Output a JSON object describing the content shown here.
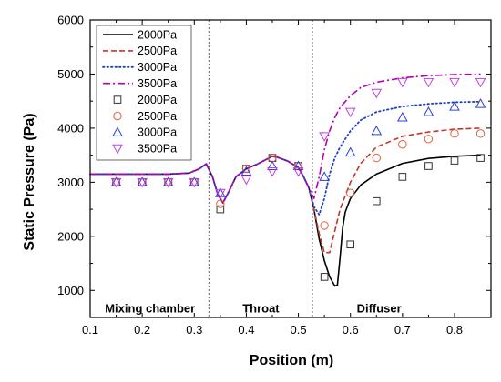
{
  "chart_data": {
    "type": "line",
    "xlabel": "Position (m)",
    "ylabel": "Static Pressure (Pa)",
    "xlim": [
      0.1,
      0.87
    ],
    "ylim": [
      500,
      6000
    ],
    "xticks": [
      0.1,
      0.2,
      0.3,
      0.4,
      0.5,
      0.6,
      0.7,
      0.8
    ],
    "xtick_labels": [
      "0.1",
      "0.2",
      "0.3",
      "0.4",
      "0.5",
      "0.6",
      "0.7",
      "0.8"
    ],
    "yticks": [
      1000,
      2000,
      3000,
      4000,
      5000,
      6000
    ],
    "ytick_labels": [
      "1000",
      "2000",
      "3000",
      "4000",
      "5000",
      "6000"
    ],
    "grid": false,
    "legend_position": "top-left",
    "region_dividers": [
      0.328,
      0.527
    ],
    "region_labels": [
      {
        "text": "Mixing chamber",
        "x": 0.215,
        "y": 660
      },
      {
        "text": "Throat",
        "x": 0.428,
        "y": 660
      },
      {
        "text": "Diffuser",
        "x": 0.655,
        "y": 660
      }
    ],
    "series": [
      {
        "name": "2000Pa",
        "kind": "line",
        "style": "solid",
        "color": "#000000",
        "x": [
          0.1,
          0.15,
          0.2,
          0.25,
          0.29,
          0.31,
          0.323,
          0.335,
          0.345,
          0.355,
          0.365,
          0.38,
          0.4,
          0.42,
          0.44,
          0.45,
          0.46,
          0.48,
          0.5,
          0.51,
          0.52,
          0.53,
          0.54,
          0.55,
          0.56,
          0.57,
          0.575,
          0.58,
          0.585,
          0.59,
          0.6,
          0.62,
          0.65,
          0.7,
          0.75,
          0.8,
          0.85
        ],
        "y": [
          3150,
          3150,
          3150,
          3150,
          3170,
          3250,
          3340,
          3100,
          2780,
          2620,
          2800,
          3100,
          3250,
          3330,
          3430,
          3480,
          3460,
          3390,
          3270,
          3100,
          2900,
          2500,
          1950,
          1550,
          1250,
          1080,
          1100,
          1600,
          2150,
          2450,
          2700,
          2950,
          3150,
          3350,
          3440,
          3480,
          3500
        ]
      },
      {
        "name": "2500Pa",
        "kind": "line",
        "style": "dashed",
        "color": "#c0392b",
        "x": [
          0.1,
          0.15,
          0.2,
          0.25,
          0.29,
          0.31,
          0.323,
          0.335,
          0.345,
          0.355,
          0.365,
          0.38,
          0.4,
          0.42,
          0.44,
          0.45,
          0.46,
          0.48,
          0.5,
          0.51,
          0.52,
          0.53,
          0.54,
          0.55,
          0.56,
          0.57,
          0.58,
          0.6,
          0.62,
          0.65,
          0.7,
          0.75,
          0.8,
          0.85
        ],
        "y": [
          3150,
          3150,
          3150,
          3150,
          3170,
          3250,
          3340,
          3100,
          2780,
          2620,
          2800,
          3100,
          3250,
          3330,
          3430,
          3480,
          3460,
          3390,
          3270,
          3100,
          2900,
          2500,
          2050,
          1700,
          1700,
          2100,
          2500,
          3000,
          3350,
          3650,
          3850,
          3930,
          3980,
          4000
        ]
      },
      {
        "name": "3000Pa",
        "kind": "line",
        "style": "dotted",
        "color": "#1f3fbf",
        "x": [
          0.1,
          0.15,
          0.2,
          0.25,
          0.29,
          0.31,
          0.323,
          0.335,
          0.345,
          0.355,
          0.365,
          0.38,
          0.4,
          0.42,
          0.44,
          0.45,
          0.46,
          0.48,
          0.5,
          0.51,
          0.52,
          0.53,
          0.54,
          0.55,
          0.56,
          0.57,
          0.58,
          0.6,
          0.62,
          0.65,
          0.7,
          0.75,
          0.8,
          0.85
        ],
        "y": [
          3150,
          3150,
          3150,
          3150,
          3170,
          3250,
          3340,
          3100,
          2780,
          2620,
          2800,
          3100,
          3250,
          3330,
          3430,
          3480,
          3460,
          3390,
          3270,
          3100,
          2900,
          2550,
          2400,
          2700,
          3150,
          3450,
          3650,
          3950,
          4150,
          4300,
          4400,
          4450,
          4480,
          4490
        ]
      },
      {
        "name": "3500Pa",
        "kind": "line",
        "style": "dashdot",
        "color": "#b400b4",
        "x": [
          0.1,
          0.15,
          0.2,
          0.25,
          0.29,
          0.31,
          0.323,
          0.335,
          0.345,
          0.355,
          0.365,
          0.38,
          0.4,
          0.42,
          0.44,
          0.45,
          0.46,
          0.48,
          0.5,
          0.51,
          0.52,
          0.53,
          0.54,
          0.55,
          0.56,
          0.57,
          0.58,
          0.6,
          0.62,
          0.65,
          0.7,
          0.75,
          0.8,
          0.85
        ],
        "y": [
          3150,
          3150,
          3150,
          3150,
          3170,
          3250,
          3340,
          3100,
          2780,
          2620,
          2800,
          3100,
          3250,
          3330,
          3430,
          3480,
          3460,
          3390,
          3270,
          3100,
          2900,
          2700,
          3100,
          3600,
          3950,
          4200,
          4380,
          4600,
          4750,
          4850,
          4930,
          4970,
          4990,
          5000
        ]
      },
      {
        "name": "2000Pa",
        "kind": "marker",
        "marker": "square",
        "color": "#333333",
        "x": [
          0.15,
          0.2,
          0.25,
          0.3,
          0.35,
          0.4,
          0.45,
          0.5,
          0.55,
          0.6,
          0.65,
          0.7,
          0.75,
          0.8,
          0.85
        ],
        "y": [
          3000,
          3000,
          3000,
          3000,
          2500,
          3250,
          3450,
          3300,
          1250,
          1850,
          2650,
          3100,
          3300,
          3400,
          3450
        ]
      },
      {
        "name": "2500Pa",
        "kind": "marker",
        "marker": "circle",
        "color": "#e06040",
        "x": [
          0.15,
          0.2,
          0.25,
          0.3,
          0.35,
          0.4,
          0.45,
          0.5,
          0.55,
          0.6,
          0.65,
          0.7,
          0.75,
          0.8,
          0.85
        ],
        "y": [
          3000,
          3000,
          3000,
          3000,
          2600,
          3250,
          3450,
          3300,
          2200,
          2800,
          3450,
          3700,
          3800,
          3900,
          3900
        ]
      },
      {
        "name": "3000Pa",
        "kind": "marker",
        "marker": "triangle-up",
        "color": "#2c3ed8",
        "x": [
          0.15,
          0.2,
          0.25,
          0.3,
          0.35,
          0.4,
          0.45,
          0.5,
          0.55,
          0.6,
          0.65,
          0.7,
          0.75,
          0.8,
          0.85
        ],
        "y": [
          3000,
          3000,
          3000,
          3000,
          2800,
          3200,
          3300,
          3300,
          3100,
          3550,
          3950,
          4200,
          4300,
          4400,
          4450
        ]
      },
      {
        "name": "3500Pa",
        "kind": "marker",
        "marker": "triangle-down",
        "color": "#c040e0",
        "x": [
          0.15,
          0.2,
          0.25,
          0.3,
          0.35,
          0.4,
          0.45,
          0.5,
          0.55,
          0.6,
          0.65,
          0.7,
          0.75,
          0.8,
          0.85
        ],
        "y": [
          3000,
          3000,
          3000,
          3000,
          2800,
          3050,
          3200,
          3200,
          3850,
          4300,
          4650,
          4850,
          4850,
          4850,
          4850
        ]
      }
    ]
  }
}
